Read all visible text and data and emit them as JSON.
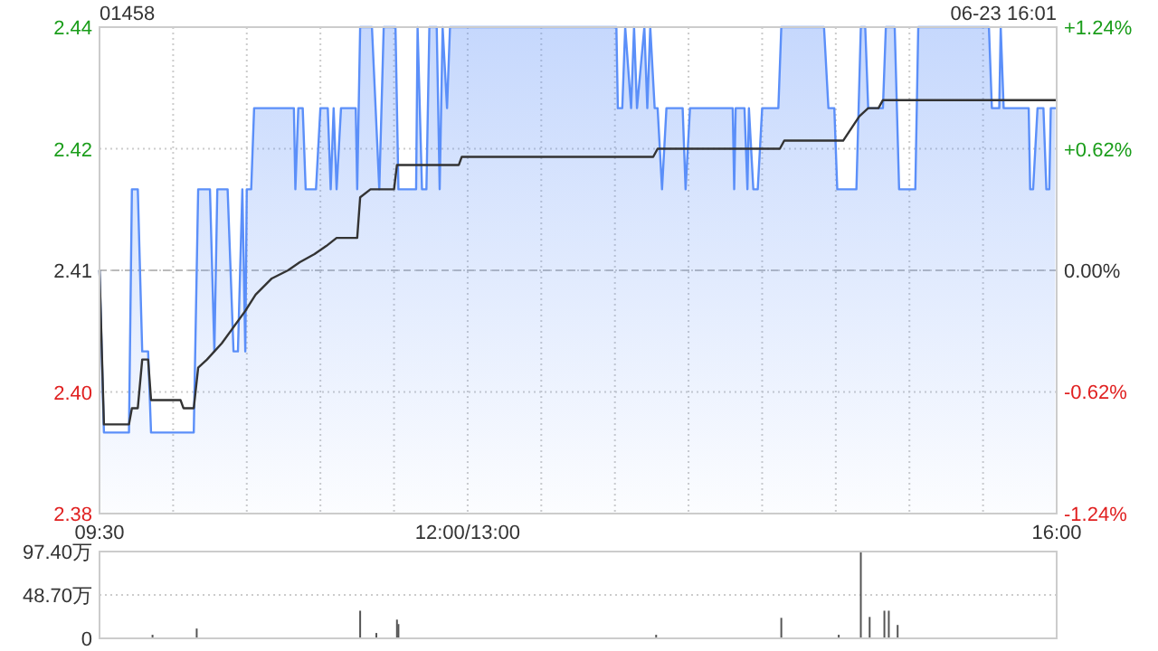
{
  "chart_data": [
    {
      "type": "line",
      "title": "01458",
      "annotations": [
        "06-23 16:01"
      ],
      "xlim": [
        9.5,
        16
      ],
      "xticks": [
        {
          "value": 9.5,
          "label": "09:30"
        },
        {
          "value": 10,
          "label": null
        },
        {
          "value": 10.5,
          "label": null
        },
        {
          "value": 11,
          "label": null
        },
        {
          "value": 11.5,
          "label": null
        },
        {
          "value": 12,
          "label": "12:00/13:00"
        },
        {
          "value": 12.5,
          "label": null
        },
        {
          "value": 13,
          "label": null
        },
        {
          "value": 13.5,
          "label": null
        },
        {
          "value": 14,
          "label": null
        },
        {
          "value": 14.5,
          "label": null
        },
        {
          "value": 15,
          "label": null
        },
        {
          "value": 15.5,
          "label": null
        },
        {
          "value": 16,
          "label": "16:00"
        }
      ],
      "ylim": [
        2.38,
        2.44
      ],
      "yticks": [
        {
          "value": 2.38,
          "label": "2.38"
        },
        {
          "value": 2.395,
          "label": "2.40"
        },
        {
          "value": 2.41,
          "label": "2.41"
        },
        {
          "value": 2.425,
          "label": "2.42"
        },
        {
          "value": 2.44,
          "label": "2.44"
        }
      ],
      "y2lim": [
        -1.245,
        1.245
      ],
      "y2ticks": [
        {
          "value": -1.245,
          "label": "-1.24%"
        },
        {
          "value": -0.622,
          "label": "-0.62%"
        },
        {
          "value": 0,
          "label": "0.00%"
        },
        {
          "value": 0.622,
          "label": "+0.62%"
        },
        {
          "value": 1.245,
          "label": "+1.24%"
        }
      ],
      "grid": true,
      "ref_lines": [
        {
          "axis": "y",
          "value": 2.41,
          "line_style": "dashed",
          "color": "#bbbbbb"
        }
      ],
      "series": [
        {
          "type": "area",
          "color": "#5b8ff9",
          "x": [
            9.5,
            9.53,
            9.7,
            9.72,
            9.76,
            9.79,
            9.83,
            9.85,
            10.14,
            10.17,
            10.25,
            10.28,
            10.3,
            10.37,
            10.41,
            10.44,
            10.47,
            10.49,
            10.5,
            10.53,
            10.55,
            10.82,
            10.83,
            10.85,
            10.88,
            10.9,
            10.97,
            11.0,
            11.05,
            11.07,
            11.09,
            11.11,
            11.14,
            11.24,
            11.25,
            11.27,
            11.35,
            11.4,
            11.43,
            11.51,
            11.53,
            11.65,
            11.66,
            11.69,
            11.72,
            11.74,
            11.79,
            11.81,
            11.83,
            11.86,
            11.88,
            13.01,
            13.02,
            13.05,
            13.07,
            13.11,
            13.13,
            13.15,
            13.2,
            13.22,
            13.24,
            13.27,
            13.29,
            13.32,
            13.35,
            13.46,
            13.48,
            13.51,
            13.8,
            13.81,
            13.82,
            13.88,
            13.9,
            13.91,
            13.94,
            13.97,
            14.0,
            14.11,
            14.13,
            14.42,
            14.45,
            14.49,
            14.51,
            14.64,
            14.67,
            14.7,
            14.72,
            14.82,
            14.84,
            14.9,
            14.93,
            15.04,
            15.06,
            15.54,
            15.56,
            15.61,
            15.62,
            15.64,
            15.81,
            15.82,
            15.84,
            15.87,
            15.91,
            15.93,
            15.95,
            15.96,
            15.99
          ],
          "values": [
            2.41,
            2.39,
            2.39,
            2.42,
            2.42,
            2.4,
            2.4,
            2.39,
            2.39,
            2.42,
            2.42,
            2.4,
            2.42,
            2.42,
            2.4,
            2.4,
            2.42,
            2.4,
            2.42,
            2.42,
            2.43,
            2.43,
            2.42,
            2.43,
            2.43,
            2.42,
            2.42,
            2.43,
            2.43,
            2.42,
            2.43,
            2.42,
            2.43,
            2.43,
            2.42,
            2.44,
            2.44,
            2.42,
            2.44,
            2.44,
            2.42,
            2.42,
            2.44,
            2.42,
            2.42,
            2.44,
            2.44,
            2.42,
            2.44,
            2.43,
            2.44,
            2.44,
            2.43,
            2.43,
            2.44,
            2.43,
            2.44,
            2.43,
            2.44,
            2.43,
            2.44,
            2.43,
            2.43,
            2.42,
            2.43,
            2.43,
            2.42,
            2.43,
            2.43,
            2.42,
            2.43,
            2.43,
            2.42,
            2.43,
            2.42,
            2.42,
            2.43,
            2.43,
            2.44,
            2.44,
            2.43,
            2.43,
            2.42,
            2.42,
            2.44,
            2.44,
            2.43,
            2.43,
            2.44,
            2.44,
            2.42,
            2.42,
            2.44,
            2.44,
            2.43,
            2.43,
            2.44,
            2.43,
            2.43,
            2.42,
            2.42,
            2.43,
            2.43,
            2.42,
            2.42,
            2.43,
            2.43
          ]
        },
        {
          "color": "#333333",
          "x": [
            9.5,
            9.53,
            9.7,
            9.72,
            9.76,
            9.79,
            9.83,
            9.85,
            10.05,
            10.07,
            10.14,
            10.17,
            10.23,
            10.28,
            10.33,
            10.41,
            10.49,
            10.56,
            10.67,
            10.78,
            10.86,
            10.96,
            11.04,
            11.11,
            11.25,
            11.27,
            11.34,
            11.5,
            11.52,
            11.94,
            11.96,
            13.26,
            13.29,
            14.12,
            14.15,
            14.55,
            14.66,
            14.72,
            14.79,
            14.82,
            15.99
          ],
          "values": [
            2.41,
            2.391,
            2.391,
            2.393,
            2.393,
            2.399,
            2.399,
            2.394,
            2.394,
            2.393,
            2.393,
            2.398,
            2.399,
            2.4,
            2.401,
            2.403,
            2.405,
            2.407,
            2.409,
            2.41,
            2.411,
            2.412,
            2.413,
            2.414,
            2.414,
            2.419,
            2.42,
            2.42,
            2.423,
            2.423,
            2.424,
            2.424,
            2.425,
            2.425,
            2.426,
            2.426,
            2.429,
            2.43,
            2.43,
            2.431,
            2.431
          ]
        }
      ]
    },
    {
      "type": "bar",
      "xlim": [
        9.5,
        16
      ],
      "ylim": [
        0,
        97.4
      ],
      "yticks": [
        {
          "value": 0,
          "label": "0"
        },
        {
          "value": 48.7,
          "label": "48.70万"
        },
        {
          "value": 97.4,
          "label": "97.40万"
        }
      ],
      "grid": "y",
      "tick_labels": "y",
      "color": "#555555",
      "x": [
        9.86,
        10.16,
        11.27,
        11.38,
        11.52,
        11.53,
        13.28,
        14.13,
        14.52,
        14.67,
        14.73,
        14.83,
        14.86,
        14.92
      ],
      "values": [
        4,
        11,
        31,
        6,
        21,
        16,
        4,
        23,
        4,
        97.4,
        24,
        31,
        31,
        15
      ]
    }
  ]
}
